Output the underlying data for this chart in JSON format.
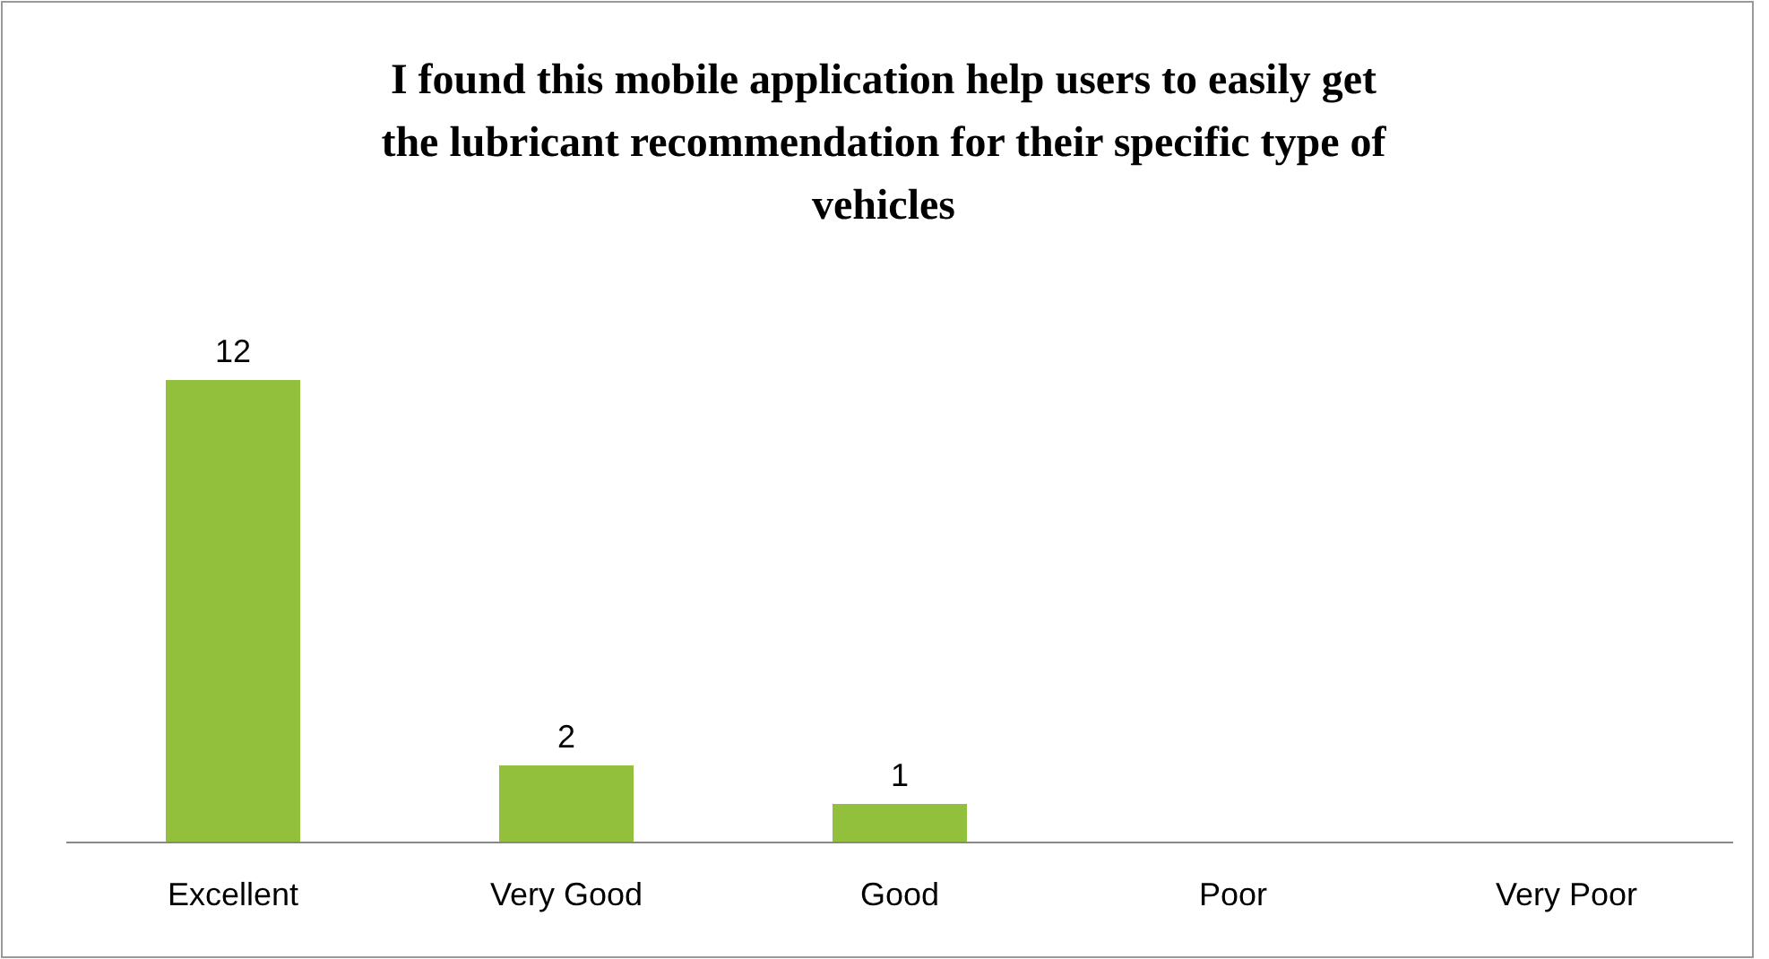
{
  "chart_data": {
    "type": "bar",
    "title": "I found this mobile application help users to easily get the lubricant recommendation for their specific type of vehicles",
    "categories": [
      "Excellent",
      "Very Good",
      "Good",
      "Poor",
      "Very Poor"
    ],
    "values": [
      12,
      2,
      1,
      0,
      0
    ],
    "value_labels": [
      "12",
      "2",
      "1",
      null,
      null
    ],
    "color": "#92c03c"
  }
}
